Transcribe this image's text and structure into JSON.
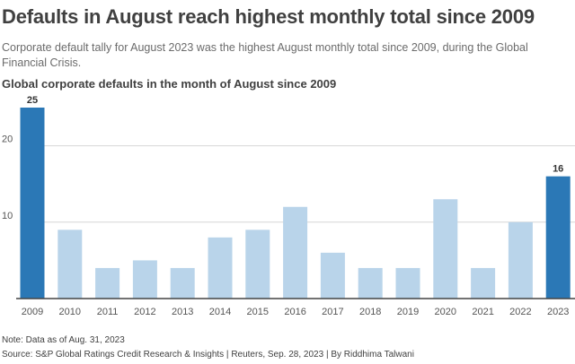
{
  "header": {
    "title": "Defaults in August reach highest monthly total since 2009",
    "subtitle": "Corporate default tally for August 2023 was the highest August monthly total since 2009, during the Global Financial Crisis."
  },
  "chart_data": {
    "type": "bar",
    "title": "Global corporate defaults in the month of August since 2009",
    "xlabel": "",
    "ylabel": "",
    "categories": [
      "2009",
      "2010",
      "2011",
      "2012",
      "2013",
      "2014",
      "2015",
      "2016",
      "2017",
      "2018",
      "2019",
      "2020",
      "2021",
      "2022",
      "2023"
    ],
    "values": [
      25,
      9,
      4,
      5,
      4,
      8,
      9,
      12,
      6,
      4,
      4,
      13,
      4,
      10,
      16
    ],
    "highlighted": [
      "2009",
      "2023"
    ],
    "data_labels": [
      {
        "category": "2009",
        "label": "25"
      },
      {
        "category": "2023",
        "label": "16"
      }
    ],
    "y_ticks": [
      10,
      20
    ],
    "ylim": [
      0,
      25
    ],
    "grid": true,
    "colors": {
      "highlight": "#2b78b6",
      "regular": "#b9d4ea",
      "grid": "#d6d6d6",
      "axis": "#444444",
      "label": "#555555"
    }
  },
  "footer": {
    "note": "Note: Data as of Aug. 31, 2023",
    "source": "Source: S&P Global Ratings Credit Research & Insights | Reuters, Sep. 28, 2023 | By Riddhima Talwani"
  }
}
